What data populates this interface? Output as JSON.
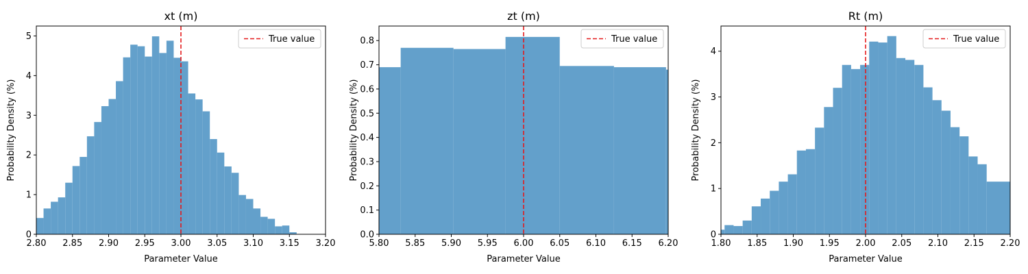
{
  "figure": {
    "background": "#ffffff",
    "bar_color": "#63a0cb",
    "true_line_color": "#e41a1c"
  },
  "chart_data": [
    {
      "type": "bar",
      "title": "xt (m)",
      "xlabel": "Parameter Value",
      "ylabel": "Probability Density (%)",
      "xlim": [
        2.8,
        3.2
      ],
      "ylim": [
        0,
        5.25
      ],
      "xticks": [
        "2.80",
        "2.85",
        "2.90",
        "2.95",
        "3.00",
        "3.05",
        "3.10",
        "3.15",
        "3.20"
      ],
      "yticks": [
        "0",
        "1",
        "2",
        "3",
        "4",
        "5"
      ],
      "legend": {
        "label": "True value",
        "position": "top-right"
      },
      "true_value": 3.0,
      "bins": [
        {
          "x0": 2.8,
          "x1": 2.81,
          "value": 0.41
        },
        {
          "x0": 2.81,
          "x1": 2.82,
          "value": 0.65
        },
        {
          "x0": 2.82,
          "x1": 2.83,
          "value": 0.82
        },
        {
          "x0": 2.83,
          "x1": 2.84,
          "value": 0.93
        },
        {
          "x0": 2.84,
          "x1": 2.85,
          "value": 1.3
        },
        {
          "x0": 2.85,
          "x1": 2.86,
          "value": 1.72
        },
        {
          "x0": 2.86,
          "x1": 2.87,
          "value": 1.95
        },
        {
          "x0": 2.87,
          "x1": 2.88,
          "value": 2.47
        },
        {
          "x0": 2.88,
          "x1": 2.89,
          "value": 2.83
        },
        {
          "x0": 2.89,
          "x1": 2.9,
          "value": 3.23
        },
        {
          "x0": 2.9,
          "x1": 2.91,
          "value": 3.41
        },
        {
          "x0": 2.91,
          "x1": 2.92,
          "value": 3.86
        },
        {
          "x0": 2.92,
          "x1": 2.93,
          "value": 4.46
        },
        {
          "x0": 2.93,
          "x1": 2.94,
          "value": 4.78
        },
        {
          "x0": 2.94,
          "x1": 2.95,
          "value": 4.74
        },
        {
          "x0": 2.95,
          "x1": 2.96,
          "value": 4.48
        },
        {
          "x0": 2.96,
          "x1": 2.97,
          "value": 4.99
        },
        {
          "x0": 2.97,
          "x1": 2.98,
          "value": 4.57
        },
        {
          "x0": 2.98,
          "x1": 2.99,
          "value": 4.88
        },
        {
          "x0": 2.99,
          "x1": 3.0,
          "value": 4.45
        },
        {
          "x0": 3.0,
          "x1": 3.01,
          "value": 4.36
        },
        {
          "x0": 3.01,
          "x1": 3.02,
          "value": 3.55
        },
        {
          "x0": 3.02,
          "x1": 3.03,
          "value": 3.4
        },
        {
          "x0": 3.03,
          "x1": 3.04,
          "value": 3.1
        },
        {
          "x0": 3.04,
          "x1": 3.05,
          "value": 2.4
        },
        {
          "x0": 3.05,
          "x1": 3.06,
          "value": 2.06
        },
        {
          "x0": 3.06,
          "x1": 3.07,
          "value": 1.71
        },
        {
          "x0": 3.07,
          "x1": 3.08,
          "value": 1.55
        },
        {
          "x0": 3.08,
          "x1": 3.09,
          "value": 0.99
        },
        {
          "x0": 3.09,
          "x1": 3.1,
          "value": 0.89
        },
        {
          "x0": 3.1,
          "x1": 3.11,
          "value": 0.65
        },
        {
          "x0": 3.11,
          "x1": 3.12,
          "value": 0.44
        },
        {
          "x0": 3.12,
          "x1": 3.13,
          "value": 0.39
        },
        {
          "x0": 3.13,
          "x1": 3.14,
          "value": 0.2
        },
        {
          "x0": 3.14,
          "x1": 3.15,
          "value": 0.22
        },
        {
          "x0": 3.15,
          "x1": 3.16,
          "value": 0.05
        }
      ]
    },
    {
      "type": "bar",
      "title": "zt (m)",
      "xlabel": "Parameter Value",
      "ylabel": "Probability Density (%)",
      "xlim": [
        5.8,
        6.2
      ],
      "ylim": [
        0,
        0.86
      ],
      "xticks": [
        "5.80",
        "5.85",
        "5.90",
        "5.95",
        "6.00",
        "6.05",
        "6.10",
        "6.15",
        "6.20"
      ],
      "yticks": [
        "0.0",
        "0.1",
        "0.2",
        "0.3",
        "0.4",
        "0.5",
        "0.6",
        "0.7",
        "0.8"
      ],
      "legend": {
        "label": "True value",
        "position": "top-right"
      },
      "true_value": 6.0,
      "bins": [
        {
          "x0": 5.8,
          "x1": 5.83,
          "value": 0.69
        },
        {
          "x0": 5.83,
          "x1": 5.903,
          "value": 0.77
        },
        {
          "x0": 5.903,
          "x1": 5.975,
          "value": 0.765
        },
        {
          "x0": 5.975,
          "x1": 6.05,
          "value": 0.815
        },
        {
          "x0": 6.05,
          "x1": 6.125,
          "value": 0.695
        },
        {
          "x0": 6.125,
          "x1": 6.197,
          "value": 0.69
        },
        {
          "x0": 6.197,
          "x1": 6.2,
          "value": 0.68
        }
      ]
    },
    {
      "type": "bar",
      "title": "Rt (m)",
      "xlabel": "Parameter Value",
      "ylabel": "Probability Density (%)",
      "xlim": [
        1.8,
        2.2
      ],
      "ylim": [
        0,
        4.55
      ],
      "xticks": [
        "1.80",
        "1.85",
        "1.90",
        "1.95",
        "2.00",
        "2.05",
        "2.10",
        "2.15",
        "2.20"
      ],
      "yticks": [
        "0",
        "1",
        "2",
        "3",
        "4"
      ],
      "legend": {
        "label": "True value",
        "position": "top-right"
      },
      "true_value": 2.0,
      "bins": [
        {
          "x0": 1.8,
          "x1": 1.805,
          "value": 0.1
        },
        {
          "x0": 1.805,
          "x1": 1.8175,
          "value": 0.2
        },
        {
          "x0": 1.8175,
          "x1": 1.83,
          "value": 0.18
        },
        {
          "x0": 1.83,
          "x1": 1.8425,
          "value": 0.3
        },
        {
          "x0": 1.8425,
          "x1": 1.855,
          "value": 0.61
        },
        {
          "x0": 1.855,
          "x1": 1.8675,
          "value": 0.78
        },
        {
          "x0": 1.8675,
          "x1": 1.88,
          "value": 0.95
        },
        {
          "x0": 1.88,
          "x1": 1.8925,
          "value": 1.15
        },
        {
          "x0": 1.8925,
          "x1": 1.905,
          "value": 1.31
        },
        {
          "x0": 1.905,
          "x1": 1.9175,
          "value": 1.83
        },
        {
          "x0": 1.9175,
          "x1": 1.93,
          "value": 1.86
        },
        {
          "x0": 1.93,
          "x1": 1.9425,
          "value": 2.33
        },
        {
          "x0": 1.9425,
          "x1": 1.955,
          "value": 2.78
        },
        {
          "x0": 1.955,
          "x1": 1.9675,
          "value": 3.2
        },
        {
          "x0": 1.9675,
          "x1": 1.98,
          "value": 3.7
        },
        {
          "x0": 1.98,
          "x1": 1.9925,
          "value": 3.61
        },
        {
          "x0": 1.9925,
          "x1": 2.005,
          "value": 3.7
        },
        {
          "x0": 2.005,
          "x1": 2.0175,
          "value": 4.21
        },
        {
          "x0": 2.0175,
          "x1": 2.03,
          "value": 4.19
        },
        {
          "x0": 2.03,
          "x1": 2.0425,
          "value": 4.33
        },
        {
          "x0": 2.0425,
          "x1": 2.055,
          "value": 3.85
        },
        {
          "x0": 2.055,
          "x1": 2.0675,
          "value": 3.81
        },
        {
          "x0": 2.0675,
          "x1": 2.08,
          "value": 3.7
        },
        {
          "x0": 2.08,
          "x1": 2.0925,
          "value": 3.21
        },
        {
          "x0": 2.0925,
          "x1": 2.105,
          "value": 2.93
        },
        {
          "x0": 2.105,
          "x1": 2.1175,
          "value": 2.7
        },
        {
          "x0": 2.1175,
          "x1": 2.13,
          "value": 2.34
        },
        {
          "x0": 2.13,
          "x1": 2.1425,
          "value": 2.14
        },
        {
          "x0": 2.1425,
          "x1": 2.155,
          "value": 1.7
        },
        {
          "x0": 2.155,
          "x1": 2.1675,
          "value": 1.53
        },
        {
          "x0": 2.1675,
          "x1": 2.2,
          "value": 1.15
        }
      ]
    }
  ]
}
